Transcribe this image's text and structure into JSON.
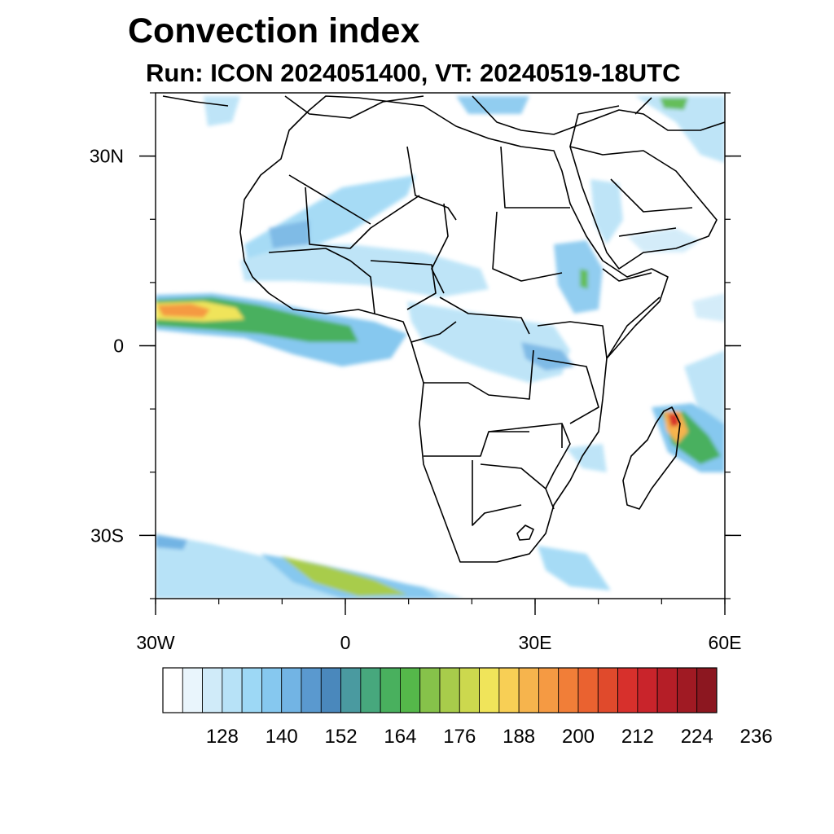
{
  "title": "Convection index",
  "subtitle": "Run: ICON 2024051400,  VT: 20240519-18UTC",
  "map": {
    "lon_range": [
      -30,
      60
    ],
    "lat_range": [
      -40,
      40
    ],
    "lon_ticks": [
      {
        "value": -30,
        "label": "30W"
      },
      {
        "value": 0,
        "label": "0"
      },
      {
        "value": 30,
        "label": "30E"
      },
      {
        "value": 60,
        "label": "60E"
      }
    ],
    "lat_ticks": [
      {
        "value": 30,
        "label": "30N"
      },
      {
        "value": 0,
        "label": "0"
      },
      {
        "value": -30,
        "label": "30S"
      }
    ],
    "minor_lon_step": 10,
    "minor_lat_step": 10
  },
  "colorbar": {
    "colors": [
      "#ffffff",
      "#e9f5fc",
      "#d0ebf9",
      "#b7e2f7",
      "#9dd8f5",
      "#86c8ef",
      "#72b4e4",
      "#5a99cf",
      "#4a88bc",
      "#4a9aa0",
      "#47a87d",
      "#49b05e",
      "#55b84a",
      "#86c24a",
      "#a8cc4b",
      "#ccd84e",
      "#f0e45a",
      "#f8cf55",
      "#f6b44d",
      "#f59a43",
      "#f17e38",
      "#ea6230",
      "#e04a2c",
      "#d7302c",
      "#c9242b",
      "#b51e27",
      "#a01a23",
      "#8c1720"
    ],
    "labels": [
      "128",
      "140",
      "152",
      "164",
      "176",
      "188",
      "200",
      "212",
      "224",
      "236"
    ]
  }
}
